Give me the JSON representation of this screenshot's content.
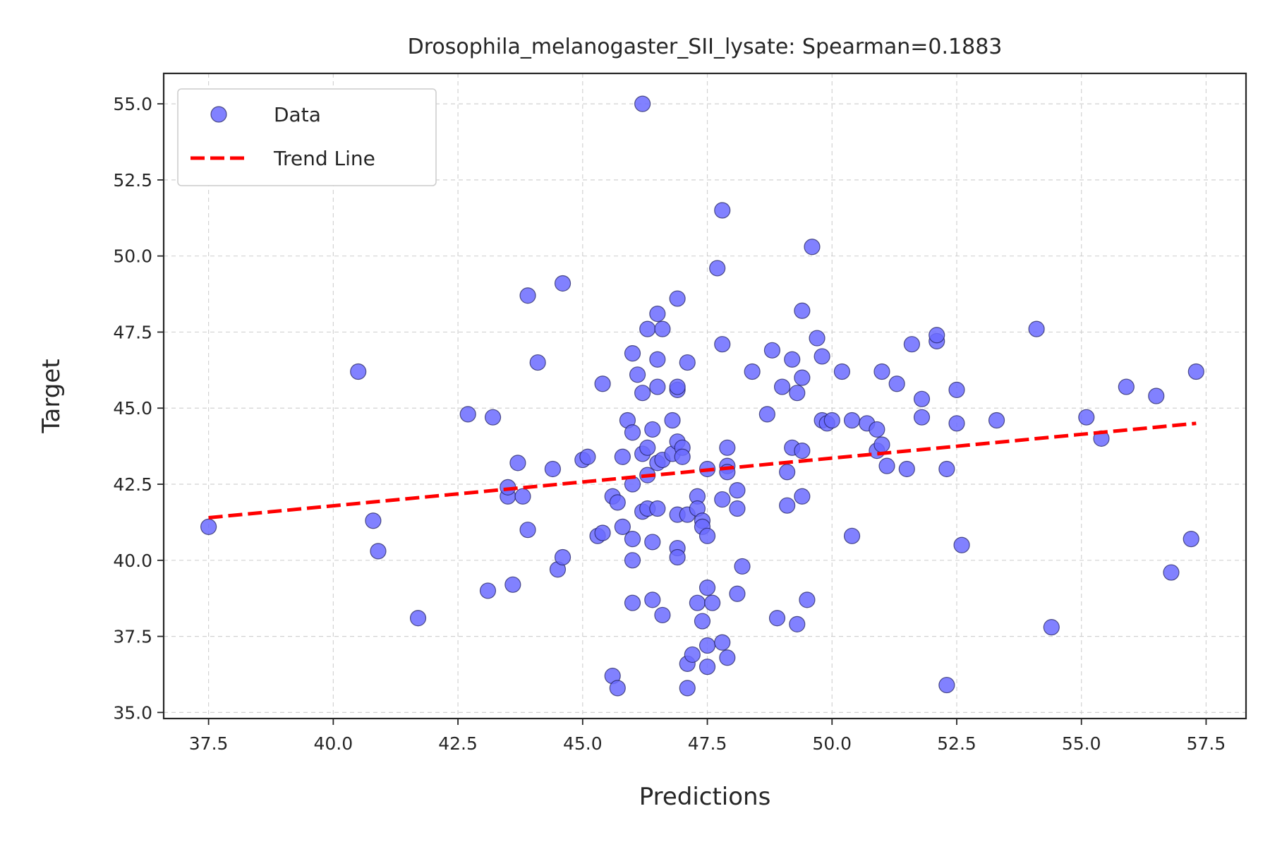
{
  "chart_data": {
    "type": "scatter",
    "title": "Drosophila_melanogaster_SII_lysate: Spearman=0.1883",
    "xlabel": "Predictions",
    "ylabel": "Target",
    "xlim": [
      36.6,
      58.3
    ],
    "ylim": [
      34.8,
      56.0
    ],
    "xticks": [
      37.5,
      40.0,
      42.5,
      45.0,
      47.5,
      50.0,
      52.5,
      55.0,
      57.5
    ],
    "xtick_labels": [
      "37.5",
      "40.0",
      "42.5",
      "45.0",
      "47.5",
      "50.0",
      "52.5",
      "55.0",
      "57.5"
    ],
    "yticks": [
      35.0,
      37.5,
      40.0,
      42.5,
      45.0,
      47.5,
      50.0,
      52.5,
      55.0
    ],
    "ytick_labels": [
      "35.0",
      "37.5",
      "40.0",
      "42.5",
      "45.0",
      "47.5",
      "50.0",
      "52.5",
      "55.0"
    ],
    "grid": true,
    "legend_position": "top-left",
    "legend": [
      {
        "label": "Data",
        "type": "marker"
      },
      {
        "label": "Trend Line",
        "type": "dashed-line"
      }
    ],
    "colors": {
      "marker_fill": "#6b6bff",
      "marker_edge": "#1a1a55",
      "trend": "#ff0000"
    },
    "series": [
      {
        "name": "Data",
        "points": [
          [
            37.5,
            41.1
          ],
          [
            40.5,
            46.2
          ],
          [
            40.8,
            41.3
          ],
          [
            40.9,
            40.3
          ],
          [
            41.7,
            38.1
          ],
          [
            42.7,
            44.8
          ],
          [
            43.2,
            44.7
          ],
          [
            43.1,
            39.0
          ],
          [
            43.5,
            42.1
          ],
          [
            43.5,
            42.4
          ],
          [
            43.6,
            39.2
          ],
          [
            43.7,
            43.2
          ],
          [
            43.8,
            42.1
          ],
          [
            43.9,
            41.0
          ],
          [
            43.9,
            48.7
          ],
          [
            44.1,
            46.5
          ],
          [
            44.4,
            43.0
          ],
          [
            44.5,
            39.7
          ],
          [
            44.6,
            40.1
          ],
          [
            44.6,
            49.1
          ],
          [
            45.0,
            43.3
          ],
          [
            45.1,
            43.4
          ],
          [
            45.3,
            40.8
          ],
          [
            45.4,
            40.9
          ],
          [
            45.4,
            45.8
          ],
          [
            45.6,
            42.1
          ],
          [
            45.6,
            36.2
          ],
          [
            45.7,
            41.9
          ],
          [
            45.7,
            35.8
          ],
          [
            45.8,
            41.1
          ],
          [
            45.8,
            43.4
          ],
          [
            45.9,
            44.6
          ],
          [
            46.0,
            42.5
          ],
          [
            46.0,
            44.2
          ],
          [
            46.0,
            46.8
          ],
          [
            46.0,
            40.7
          ],
          [
            46.0,
            40.0
          ],
          [
            46.0,
            38.6
          ],
          [
            46.1,
            46.1
          ],
          [
            46.2,
            43.5
          ],
          [
            46.2,
            41.6
          ],
          [
            46.2,
            45.5
          ],
          [
            46.2,
            55.0
          ],
          [
            46.3,
            47.6
          ],
          [
            46.3,
            43.7
          ],
          [
            46.3,
            41.7
          ],
          [
            46.3,
            42.8
          ],
          [
            46.4,
            44.3
          ],
          [
            46.4,
            40.6
          ],
          [
            46.4,
            38.7
          ],
          [
            46.5,
            43.2
          ],
          [
            46.5,
            41.7
          ],
          [
            46.5,
            45.7
          ],
          [
            46.5,
            46.6
          ],
          [
            46.5,
            48.1
          ],
          [
            46.6,
            47.6
          ],
          [
            46.6,
            43.3
          ],
          [
            46.6,
            38.2
          ],
          [
            46.8,
            44.6
          ],
          [
            46.8,
            43.5
          ],
          [
            46.9,
            45.6
          ],
          [
            46.9,
            45.7
          ],
          [
            46.9,
            48.6
          ],
          [
            46.9,
            43.9
          ],
          [
            46.9,
            41.5
          ],
          [
            46.9,
            40.4
          ],
          [
            46.9,
            40.1
          ],
          [
            47.0,
            43.7
          ],
          [
            47.0,
            43.4
          ],
          [
            47.1,
            46.5
          ],
          [
            47.1,
            41.5
          ],
          [
            47.1,
            36.6
          ],
          [
            47.1,
            35.8
          ],
          [
            47.2,
            36.9
          ],
          [
            47.3,
            42.1
          ],
          [
            47.3,
            41.7
          ],
          [
            47.3,
            38.6
          ],
          [
            47.4,
            41.3
          ],
          [
            47.4,
            41.1
          ],
          [
            47.4,
            38.0
          ],
          [
            47.5,
            43.0
          ],
          [
            47.5,
            39.1
          ],
          [
            47.5,
            40.8
          ],
          [
            47.5,
            37.2
          ],
          [
            47.5,
            36.5
          ],
          [
            47.6,
            38.6
          ],
          [
            47.7,
            49.6
          ],
          [
            47.8,
            37.3
          ],
          [
            47.8,
            42.0
          ],
          [
            47.8,
            47.1
          ],
          [
            47.8,
            51.5
          ],
          [
            47.9,
            43.1
          ],
          [
            47.9,
            42.9
          ],
          [
            47.9,
            43.7
          ],
          [
            47.9,
            36.8
          ],
          [
            48.1,
            41.7
          ],
          [
            48.1,
            38.9
          ],
          [
            48.1,
            42.3
          ],
          [
            48.2,
            39.8
          ],
          [
            48.4,
            46.2
          ],
          [
            48.7,
            44.8
          ],
          [
            48.8,
            46.9
          ],
          [
            48.9,
            38.1
          ],
          [
            49.0,
            45.7
          ],
          [
            49.1,
            41.8
          ],
          [
            49.1,
            42.9
          ],
          [
            49.2,
            46.6
          ],
          [
            49.2,
            43.7
          ],
          [
            49.3,
            37.9
          ],
          [
            49.3,
            45.5
          ],
          [
            49.4,
            46.0
          ],
          [
            49.4,
            43.6
          ],
          [
            49.4,
            42.1
          ],
          [
            49.4,
            48.2
          ],
          [
            49.5,
            38.7
          ],
          [
            49.6,
            50.3
          ],
          [
            49.7,
            47.3
          ],
          [
            49.8,
            46.7
          ],
          [
            49.8,
            44.6
          ],
          [
            49.9,
            44.5
          ],
          [
            50.0,
            44.6
          ],
          [
            50.2,
            46.2
          ],
          [
            50.4,
            44.6
          ],
          [
            50.4,
            40.8
          ],
          [
            50.7,
            44.5
          ],
          [
            50.9,
            44.3
          ],
          [
            50.9,
            43.6
          ],
          [
            51.0,
            46.2
          ],
          [
            51.0,
            43.8
          ],
          [
            51.1,
            43.1
          ],
          [
            51.3,
            45.8
          ],
          [
            51.5,
            43.0
          ],
          [
            51.6,
            47.1
          ],
          [
            51.8,
            45.3
          ],
          [
            51.8,
            44.7
          ],
          [
            52.1,
            47.2
          ],
          [
            52.1,
            47.4
          ],
          [
            52.3,
            43.0
          ],
          [
            52.3,
            35.9
          ],
          [
            52.5,
            45.6
          ],
          [
            52.5,
            44.5
          ],
          [
            52.6,
            40.5
          ],
          [
            53.3,
            44.6
          ],
          [
            54.1,
            47.6
          ],
          [
            54.4,
            37.8
          ],
          [
            55.1,
            44.7
          ],
          [
            55.4,
            44.0
          ],
          [
            55.9,
            45.7
          ],
          [
            56.5,
            45.4
          ],
          [
            56.8,
            39.6
          ],
          [
            57.2,
            40.7
          ],
          [
            57.3,
            46.2
          ]
        ]
      },
      {
        "name": "Trend Line",
        "type": "line",
        "x": [
          37.5,
          57.3
        ],
        "y": [
          41.4,
          44.5
        ]
      }
    ]
  }
}
